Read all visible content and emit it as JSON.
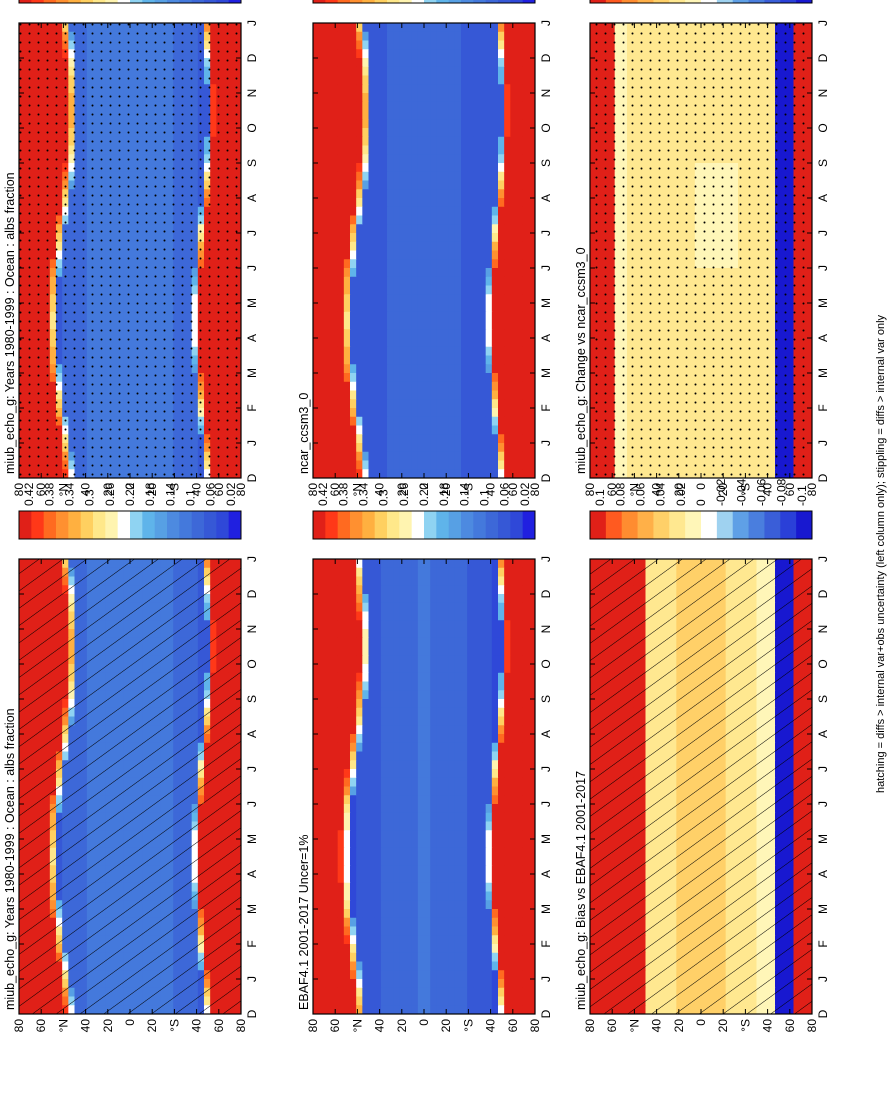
{
  "footnote": "hatching = diffs > internal var+obs uncertainty (left column only); stippling = diffs > internal var only",
  "colors": {
    "abs_scale": [
      "#2020e0",
      "#2f48d8",
      "#3658d6",
      "#3d68d8",
      "#4479dc",
      "#4d8ae0",
      "#57a0e4",
      "#5fb4ea",
      "#8fd3f2",
      "#ffffff",
      "#fff4b0",
      "#ffe88a",
      "#ffd060",
      "#ffb040",
      "#ff9030",
      "#ff6a20",
      "#ff3818",
      "#e02018"
    ],
    "diff_scale": [
      "#1818d0",
      "#2a40d8",
      "#3a5ed8",
      "#4a7ede",
      "#5fa0e6",
      "#9fd2f0",
      "#ffffff",
      "#fff6b8",
      "#ffe890",
      "#ffd068",
      "#ffb048",
      "#ff8c30",
      "#ff5a20",
      "#e02018"
    ]
  },
  "chart_data": [
    {
      "id": "p1",
      "type": "heatmap",
      "title": "miub_echo_g: Years 1980-1999 : Ocean : albs fraction",
      "xlabel": "",
      "ylabel": "",
      "x_ticks": [
        "D",
        "J",
        "F",
        "M",
        "A",
        "M",
        "J",
        "J",
        "A",
        "S",
        "O",
        "N",
        "D",
        "J"
      ],
      "y_ticks": [
        "80",
        "60",
        "°N",
        "40",
        "20",
        "0",
        "20",
        "°S",
        "40",
        "60",
        "80"
      ],
      "x_range": [
        0,
        13
      ],
      "y_range": [
        -90,
        90
      ],
      "scale": "abs",
      "overlay": "hatching",
      "colorbar_labels": [
        "0.42",
        "0.38",
        "0.34",
        "0.3",
        "0.26",
        "0.22",
        "0.18",
        "0.14",
        "0.1",
        "0.06",
        "0.02"
      ]
    },
    {
      "id": "p2",
      "type": "heatmap",
      "title": "miub_echo_g: Years 1980-1999 : Ocean : albs fraction",
      "xlabel": "",
      "ylabel": "",
      "x_ticks": [
        "D",
        "J",
        "F",
        "M",
        "A",
        "M",
        "J",
        "J",
        "A",
        "S",
        "O",
        "N",
        "D",
        "J"
      ],
      "y_ticks": [
        "80",
        "60",
        "°N",
        "40",
        "20",
        "0",
        "20",
        "°S",
        "40",
        "60",
        "80"
      ],
      "x_range": [
        0,
        13
      ],
      "y_range": [
        -90,
        90
      ],
      "scale": "abs",
      "overlay": "stippling",
      "colorbar_labels": [
        "0.42",
        "0.38",
        "0.34",
        "0.3",
        "0.26",
        "0.22",
        "0.18",
        "0.14",
        "0.1",
        "0.06",
        "0.02"
      ]
    },
    {
      "id": "p3",
      "type": "heatmap",
      "title": "EBAF4.1 2001-2017 Uncer=1%",
      "xlabel": "",
      "ylabel": "",
      "x_ticks": [
        "D",
        "J",
        "F",
        "M",
        "A",
        "M",
        "J",
        "J",
        "A",
        "S",
        "O",
        "N",
        "D",
        "J"
      ],
      "y_ticks": [
        "80",
        "60",
        "°N",
        "40",
        "20",
        "0",
        "20",
        "°S",
        "40",
        "60",
        "80"
      ],
      "x_range": [
        0,
        13
      ],
      "y_range": [
        -90,
        90
      ],
      "scale": "abs",
      "overlay": "none",
      "colorbar_labels": [
        "0.42",
        "0.38",
        "0.34",
        "0.3",
        "0.26",
        "0.22",
        "0.18",
        "0.14",
        "0.1",
        "0.06",
        "0.02"
      ]
    },
    {
      "id": "p4",
      "type": "heatmap",
      "title": "ncar_ccsm3_0",
      "xlabel": "",
      "ylabel": "",
      "x_ticks": [
        "D",
        "J",
        "F",
        "M",
        "A",
        "M",
        "J",
        "J",
        "A",
        "S",
        "O",
        "N",
        "D",
        "J"
      ],
      "y_ticks": [
        "80",
        "60",
        "°N",
        "40",
        "20",
        "0",
        "20",
        "°S",
        "40",
        "60",
        "80"
      ],
      "x_range": [
        0,
        13
      ],
      "y_range": [
        -90,
        90
      ],
      "scale": "abs",
      "overlay": "none",
      "colorbar_labels": [
        "0.42",
        "0.38",
        "0.34",
        "0.3",
        "0.26",
        "0.22",
        "0.18",
        "0.14",
        "0.1",
        "0.06",
        "0.02"
      ]
    },
    {
      "id": "p5",
      "type": "heatmap",
      "title": "miub_echo_g: Bias vs EBAF4.1 2001-2017",
      "xlabel": "",
      "ylabel": "",
      "x_ticks": [
        "D",
        "J",
        "F",
        "M",
        "A",
        "M",
        "J",
        "J",
        "A",
        "S",
        "O",
        "N",
        "D",
        "J"
      ],
      "y_ticks": [
        "80",
        "60",
        "°N",
        "40",
        "20",
        "0",
        "20",
        "°S",
        "40",
        "60",
        "80"
      ],
      "x_range": [
        0,
        13
      ],
      "y_range": [
        -90,
        90
      ],
      "scale": "diff",
      "overlay": "hatching",
      "colorbar_labels": [
        "0.1",
        "0.08",
        "0.06",
        "0.04",
        "0.02",
        "0",
        "-0.02",
        "-0.04",
        "-0.06",
        "-0.08",
        "-0.1"
      ]
    },
    {
      "id": "p6",
      "type": "heatmap",
      "title": "miub_echo_g: Change vs ncar_ccsm3_0",
      "xlabel": "",
      "ylabel": "",
      "x_ticks": [
        "D",
        "J",
        "F",
        "M",
        "A",
        "M",
        "J",
        "J",
        "A",
        "S",
        "O",
        "N",
        "D",
        "J"
      ],
      "y_ticks": [
        "80",
        "60",
        "°N",
        "40",
        "20",
        "0",
        "20",
        "°S",
        "40",
        "60",
        "80"
      ],
      "x_range": [
        0,
        13
      ],
      "y_range": [
        -90,
        90
      ],
      "scale": "diff",
      "overlay": "stippling",
      "colorbar_labels": [
        "0.1",
        "0.08",
        "0.06",
        "0.04",
        "0.02",
        "0",
        "-0.02",
        "-0.04",
        "-0.06",
        "-0.08",
        "-0.1"
      ]
    }
  ]
}
